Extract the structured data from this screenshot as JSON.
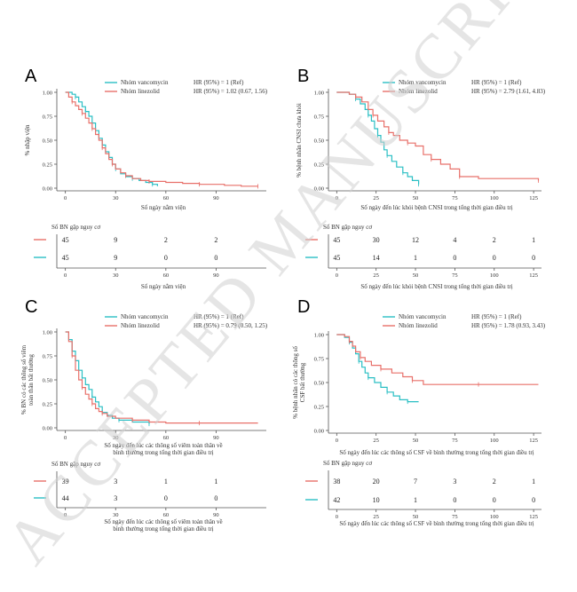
{
  "colors": {
    "vanco": "#2ABFC4",
    "line": "#E8706A",
    "axis": "#555555"
  },
  "watermark": "ACCEPTED MANUSCRIPT",
  "chart_data": [
    {
      "id": "A",
      "panel_label": "A",
      "type": "line",
      "ylabel": [
        "% nhập viện"
      ],
      "xlabel": [
        "Số ngày nằm viện"
      ],
      "xticks": [
        "0",
        "30",
        "60",
        "90"
      ],
      "xtick_vals": [
        0,
        30,
        60,
        90
      ],
      "xlim": [
        -3,
        120
      ],
      "yticks": [
        "0.00",
        "0.25",
        "0.50",
        "0.75",
        "1.00"
      ],
      "ylim": [
        0,
        1
      ],
      "legend": [
        "Nhóm vancomycin",
        "Nhóm linezolid"
      ],
      "hr": [
        "HR (95%) = 1 (Ref)",
        "HR (95%) = 1.02 (0.67, 1.56)"
      ],
      "risk_title": "Số BN gặp nguy cơ",
      "risk_rows": [
        [
          "45",
          "9",
          "2",
          "2"
        ],
        [
          "45",
          "9",
          "0",
          "0"
        ]
      ],
      "risk_xlabel": [
        "Số ngày nằm viện"
      ],
      "series": [
        {
          "name": "Nhóm vancomycin",
          "color": "vanco",
          "points": [
            [
              0,
              1
            ],
            [
              4,
              0.98
            ],
            [
              6,
              0.95
            ],
            [
              8,
              0.9
            ],
            [
              10,
              0.85
            ],
            [
              12,
              0.8
            ],
            [
              14,
              0.75
            ],
            [
              16,
              0.68
            ],
            [
              18,
              0.6
            ],
            [
              20,
              0.52
            ],
            [
              22,
              0.45
            ],
            [
              24,
              0.38
            ],
            [
              26,
              0.32
            ],
            [
              28,
              0.25
            ],
            [
              30,
              0.2
            ],
            [
              33,
              0.15
            ],
            [
              36,
              0.12
            ],
            [
              40,
              0.1
            ],
            [
              44,
              0.08
            ],
            [
              48,
              0.06
            ],
            [
              52,
              0.04
            ],
            [
              55,
              0.02
            ]
          ]
        },
        {
          "name": "Nhóm linezolid",
          "color": "line",
          "points": [
            [
              0,
              1
            ],
            [
              2,
              0.95
            ],
            [
              4,
              0.9
            ],
            [
              6,
              0.86
            ],
            [
              8,
              0.82
            ],
            [
              10,
              0.78
            ],
            [
              12,
              0.73
            ],
            [
              14,
              0.68
            ],
            [
              16,
              0.62
            ],
            [
              18,
              0.56
            ],
            [
              20,
              0.5
            ],
            [
              22,
              0.42
            ],
            [
              24,
              0.36
            ],
            [
              26,
              0.3
            ],
            [
              28,
              0.25
            ],
            [
              30,
              0.2
            ],
            [
              33,
              0.16
            ],
            [
              36,
              0.13
            ],
            [
              40,
              0.1
            ],
            [
              45,
              0.08
            ],
            [
              50,
              0.07
            ],
            [
              60,
              0.06
            ],
            [
              70,
              0.05
            ],
            [
              80,
              0.04
            ],
            [
              95,
              0.03
            ],
            [
              105,
              0.02
            ],
            [
              115,
              0.02
            ]
          ]
        }
      ]
    },
    {
      "id": "B",
      "panel_label": "B",
      "type": "line",
      "ylabel": [
        "% bệnh nhân CNSI chưa khỏi"
      ],
      "xlabel": [
        "Số ngày đến lúc khỏi bệnh CNSI trong tổng thời gian điều trị"
      ],
      "xticks": [
        "0",
        "25",
        "50",
        "75",
        "100",
        "125"
      ],
      "xtick_vals": [
        0,
        25,
        50,
        75,
        100,
        125
      ],
      "xlim": [
        -3,
        130
      ],
      "yticks": [
        "0.00",
        "0.25",
        "0.50",
        "0.75",
        "1.00"
      ],
      "ylim": [
        0,
        1
      ],
      "legend": [
        "Nhóm vancomycin",
        "Nhóm linezolid"
      ],
      "hr": [
        "HR (95%) = 1 (Ref)",
        "HR (95%) = 2.79 (1.61, 4.83)"
      ],
      "risk_title": "Số BN gặp nguy cơ",
      "risk_rows": [
        [
          "45",
          "30",
          "12",
          "4",
          "2",
          "1"
        ],
        [
          "45",
          "14",
          "1",
          "0",
          "0",
          "0"
        ]
      ],
      "risk_xlabel": [
        "Số ngày đến lúc khỏi bệnh CNSI trong tổng thời gian điều trị"
      ],
      "series": [
        {
          "name": "Nhóm vancomycin",
          "color": "vanco",
          "points": [
            [
              0,
              1
            ],
            [
              8,
              0.98
            ],
            [
              12,
              0.93
            ],
            [
              15,
              0.88
            ],
            [
              18,
              0.82
            ],
            [
              20,
              0.76
            ],
            [
              22,
              0.7
            ],
            [
              24,
              0.62
            ],
            [
              26,
              0.55
            ],
            [
              28,
              0.48
            ],
            [
              30,
              0.4
            ],
            [
              32,
              0.34
            ],
            [
              35,
              0.28
            ],
            [
              38,
              0.22
            ],
            [
              42,
              0.16
            ],
            [
              45,
              0.12
            ],
            [
              48,
              0.08
            ],
            [
              52,
              0.04
            ]
          ]
        },
        {
          "name": "Nhóm linezolid",
          "color": "line",
          "points": [
            [
              0,
              1
            ],
            [
              8,
              0.98
            ],
            [
              12,
              0.95
            ],
            [
              16,
              0.9
            ],
            [
              20,
              0.82
            ],
            [
              23,
              0.76
            ],
            [
              26,
              0.7
            ],
            [
              30,
              0.64
            ],
            [
              33,
              0.58
            ],
            [
              36,
              0.55
            ],
            [
              40,
              0.5
            ],
            [
              45,
              0.47
            ],
            [
              50,
              0.44
            ],
            [
              55,
              0.35
            ],
            [
              60,
              0.3
            ],
            [
              66,
              0.25
            ],
            [
              72,
              0.2
            ],
            [
              78,
              0.12
            ],
            [
              90,
              0.1
            ],
            [
              100,
              0.1
            ],
            [
              128,
              0.08
            ]
          ]
        }
      ]
    },
    {
      "id": "C",
      "panel_label": "C",
      "type": "line",
      "ylabel": [
        "% BN có các thông số viêm",
        "toàn thân bất thường"
      ],
      "xlabel": [
        "Số ngày đến lúc các thông số viêm toàn thân về",
        "bình thường trong tổng thời gian điều trị"
      ],
      "xticks": [
        "0",
        "30",
        "60",
        "90"
      ],
      "xtick_vals": [
        0,
        30,
        60,
        90
      ],
      "xlim": [
        -3,
        120
      ],
      "yticks": [
        "0.00",
        "0.25",
        "0.50",
        "0.75",
        "1.00"
      ],
      "ylim": [
        0,
        1
      ],
      "legend": [
        "Nhóm vancomycin",
        "Nhóm linezolid"
      ],
      "hr": [
        "HR (95%) = 1 (Ref)",
        "HR (95%) = 0.79 (0.50, 1.25)"
      ],
      "risk_title": "Số BN gặp nguy cơ",
      "risk_rows": [
        [
          "39",
          "3",
          "1",
          "1"
        ],
        [
          "44",
          "3",
          "0",
          "0"
        ]
      ],
      "risk_xlabel": [
        "Số ngày đến lúc các thông số viêm toàn thân về",
        "bình thường trong tổng thời gian điều trị"
      ],
      "series": [
        {
          "name": "Nhóm vancomycin",
          "color": "vanco",
          "points": [
            [
              0,
              1
            ],
            [
              2,
              0.92
            ],
            [
              4,
              0.8
            ],
            [
              6,
              0.7
            ],
            [
              8,
              0.6
            ],
            [
              10,
              0.52
            ],
            [
              12,
              0.45
            ],
            [
              14,
              0.4
            ],
            [
              16,
              0.32
            ],
            [
              18,
              0.27
            ],
            [
              20,
              0.22
            ],
            [
              22,
              0.16
            ],
            [
              25,
              0.13
            ],
            [
              28,
              0.1
            ],
            [
              32,
              0.08
            ],
            [
              40,
              0.06
            ],
            [
              48,
              0.06
            ],
            [
              50,
              0.04
            ]
          ]
        },
        {
          "name": "Nhóm linezolid",
          "color": "line",
          "points": [
            [
              0,
              1
            ],
            [
              2,
              0.9
            ],
            [
              4,
              0.75
            ],
            [
              6,
              0.6
            ],
            [
              8,
              0.5
            ],
            [
              10,
              0.42
            ],
            [
              12,
              0.35
            ],
            [
              14,
              0.3
            ],
            [
              16,
              0.25
            ],
            [
              18,
              0.2
            ],
            [
              20,
              0.17
            ],
            [
              22,
              0.15
            ],
            [
              25,
              0.12
            ],
            [
              30,
              0.1
            ],
            [
              40,
              0.08
            ],
            [
              50,
              0.06
            ],
            [
              60,
              0.05
            ],
            [
              80,
              0.05
            ],
            [
              100,
              0.05
            ],
            [
              115,
              0.05
            ]
          ]
        }
      ]
    },
    {
      "id": "D",
      "panel_label": "D",
      "type": "line",
      "ylabel": [
        "% bệnh nhân có các thông số",
        "CSF bất thường"
      ],
      "xlabel": [
        "Số ngày đến lúc các thông số CSF về bình thường trong tổng thời gian điều trị"
      ],
      "xticks": [
        "0",
        "25",
        "50",
        "75",
        "100",
        "125"
      ],
      "xtick_vals": [
        0,
        25,
        50,
        75,
        100,
        125
      ],
      "xlim": [
        -3,
        130
      ],
      "yticks": [
        "0.00",
        "0.25",
        "0.50",
        "0.75",
        "1.00"
      ],
      "ylim": [
        0,
        1
      ],
      "legend": [
        "Nhóm vancomycin",
        "Nhóm linezolid"
      ],
      "hr": [
        "HR (95%) = 1 (Ref)",
        "HR (95%) = 1.78 (0.93, 3.43)"
      ],
      "risk_title": "Số BN gặp nguy cơ",
      "risk_rows": [
        [
          "38",
          "20",
          "7",
          "3",
          "2",
          "1"
        ],
        [
          "42",
          "10",
          "1",
          "0",
          "0",
          "0"
        ]
      ],
      "risk_xlabel": [
        "Số ngày đến lúc các thông số CSF về bình thường trong tổng thời gian điều trị"
      ],
      "series": [
        {
          "name": "Nhóm vancomycin",
          "color": "vanco",
          "points": [
            [
              0,
              1
            ],
            [
              5,
              0.97
            ],
            [
              8,
              0.92
            ],
            [
              10,
              0.86
            ],
            [
              12,
              0.8
            ],
            [
              14,
              0.72
            ],
            [
              16,
              0.66
            ],
            [
              18,
              0.6
            ],
            [
              20,
              0.55
            ],
            [
              24,
              0.5
            ],
            [
              28,
              0.45
            ],
            [
              32,
              0.4
            ],
            [
              36,
              0.36
            ],
            [
              40,
              0.32
            ],
            [
              45,
              0.3
            ],
            [
              52,
              0.3
            ]
          ]
        },
        {
          "name": "Nhóm linezolid",
          "color": "line",
          "points": [
            [
              0,
              1
            ],
            [
              5,
              0.98
            ],
            [
              8,
              0.93
            ],
            [
              10,
              0.88
            ],
            [
              12,
              0.82
            ],
            [
              15,
              0.76
            ],
            [
              18,
              0.72
            ],
            [
              22,
              0.68
            ],
            [
              28,
              0.64
            ],
            [
              35,
              0.6
            ],
            [
              42,
              0.56
            ],
            [
              48,
              0.52
            ],
            [
              55,
              0.48
            ],
            [
              70,
              0.48
            ],
            [
              90,
              0.48
            ],
            [
              110,
              0.48
            ],
            [
              128,
              0.48
            ]
          ]
        }
      ]
    }
  ]
}
